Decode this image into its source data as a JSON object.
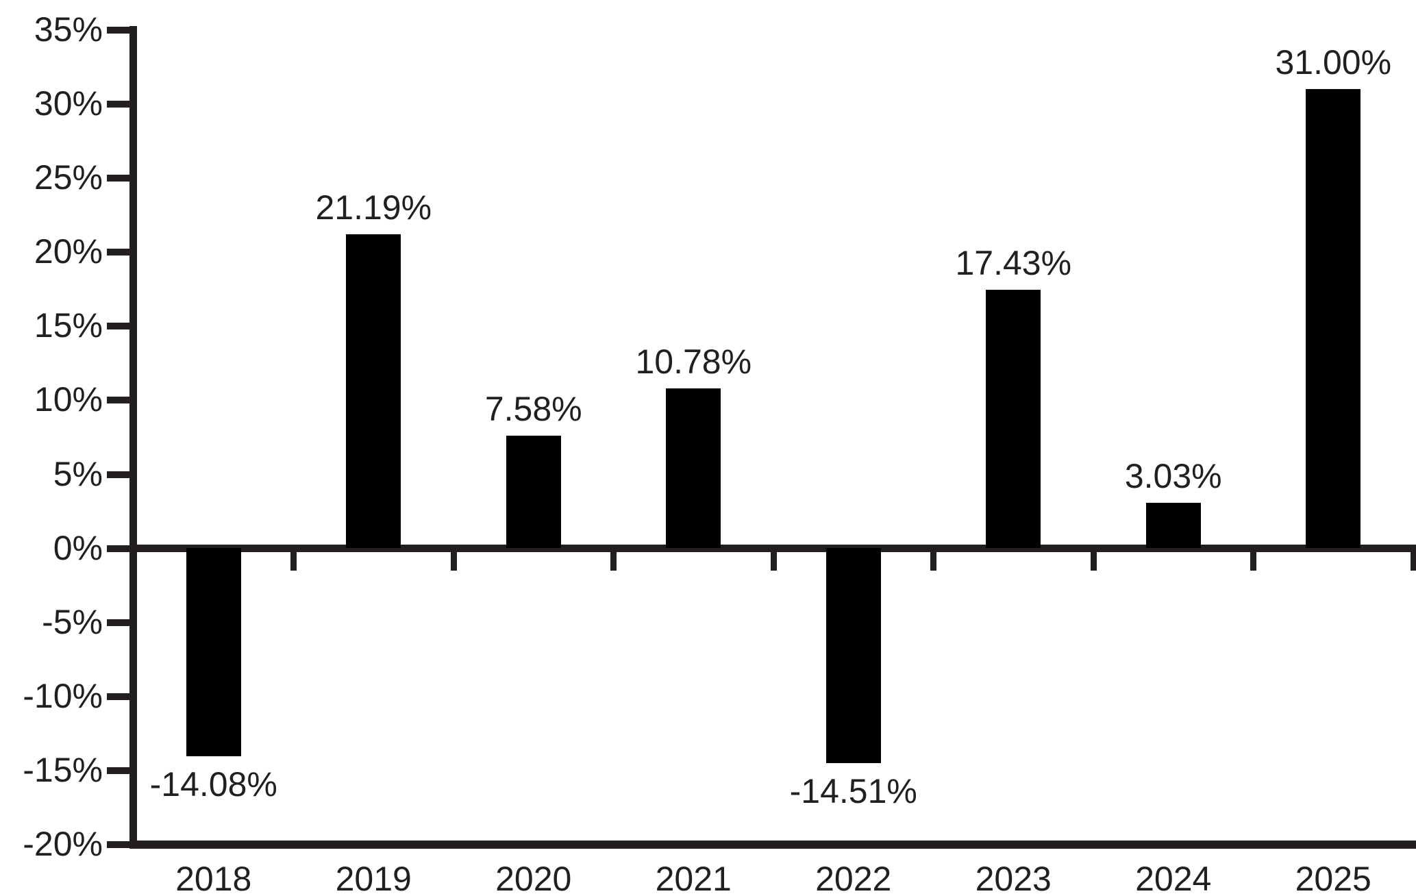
{
  "chart_data": {
    "type": "bar",
    "categories": [
      "2018",
      "2019",
      "2020",
      "2021",
      "2022",
      "2023",
      "2024",
      "2025"
    ],
    "values": [
      -14.08,
      21.19,
      7.58,
      10.78,
      -14.51,
      17.43,
      3.03,
      31.0
    ],
    "value_labels": [
      "-14.08%",
      "21.19%",
      "7.58%",
      "10.78%",
      "-14.51%",
      "17.43%",
      "3.03%",
      "31.00%"
    ],
    "ylim": [
      -20,
      35
    ],
    "ytick_step": 5,
    "ytick_labels": [
      "35%",
      "30%",
      "25%",
      "20%",
      "15%",
      "10%",
      "5%",
      "0%",
      "-5%",
      "-10%",
      "-15%",
      "-20%"
    ],
    "grid": false,
    "legend": "none",
    "bar_color": "#000000",
    "axis_color": "#231f20",
    "text_color": "#231f20"
  }
}
